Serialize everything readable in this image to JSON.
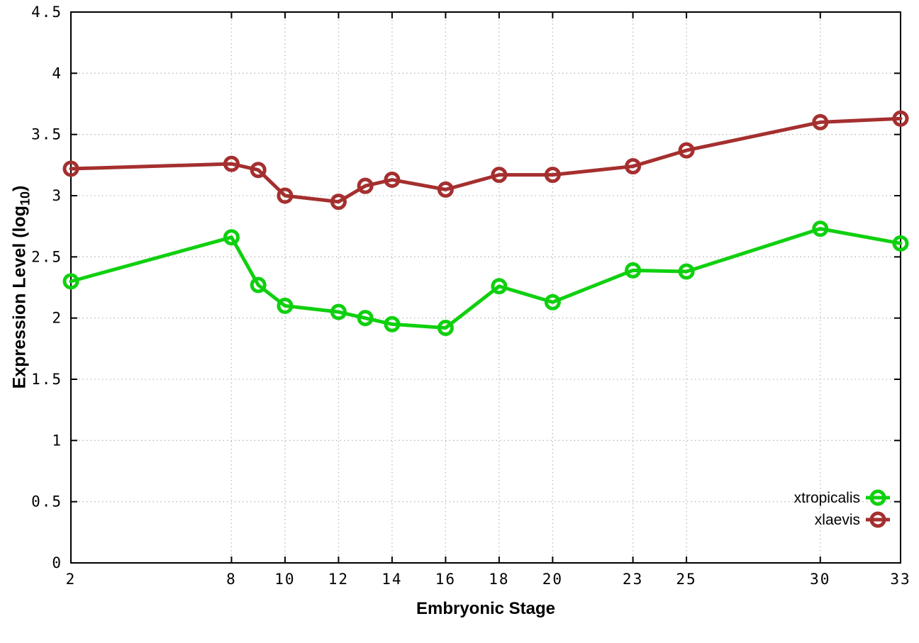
{
  "chart_data": {
    "type": "line",
    "title": "",
    "xlabel": "Embryonic Stage",
    "ylabel": "Expression Level (log10)",
    "ylabel_parts": {
      "prefix": "Expression Level (log",
      "sub": "10",
      "suffix": ")"
    },
    "x": [
      2,
      8,
      9,
      10,
      12,
      13,
      14,
      16,
      18,
      20,
      23,
      25,
      30,
      33
    ],
    "series": [
      {
        "name": "xtropicalis",
        "color": "#0fd00f",
        "values": [
          2.3,
          2.66,
          2.27,
          2.1,
          2.05,
          2.0,
          1.95,
          1.92,
          2.26,
          2.13,
          2.39,
          2.38,
          2.73,
          2.61
        ]
      },
      {
        "name": "xlaevis",
        "color": "#a52f2f",
        "values": [
          3.22,
          3.26,
          3.21,
          3.0,
          2.95,
          3.08,
          3.13,
          3.05,
          3.17,
          3.17,
          3.24,
          3.37,
          3.6,
          3.63
        ]
      }
    ],
    "xlim": [
      2,
      33
    ],
    "ylim": [
      0,
      4.5
    ],
    "xticks": [
      2,
      8,
      10,
      12,
      14,
      16,
      18,
      20,
      23,
      25,
      30,
      33
    ],
    "yticks": [
      0,
      0.5,
      1,
      1.5,
      2,
      2.5,
      3,
      3.5,
      4,
      4.5
    ],
    "ytick_labels": [
      "0",
      "0.5",
      "1",
      "1.5",
      "2",
      "2.5",
      "3",
      "3.5",
      "4",
      "4.5"
    ],
    "grid": true,
    "legend_position": "bottom-right",
    "marker": "open-circle",
    "line_width": 5
  },
  "colors": {
    "background": "#ffffff",
    "axis": "#000000",
    "grid": "#b9b9b9",
    "text": "#000000"
  }
}
